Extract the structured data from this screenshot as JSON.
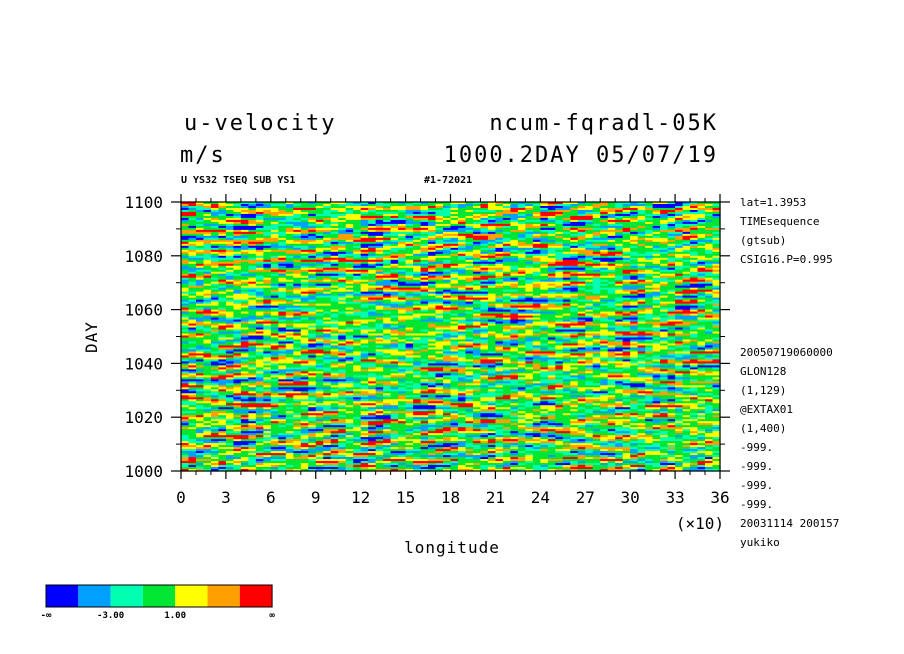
{
  "chart_data": {
    "type": "heatmap",
    "title": {
      "variable": "u-velocity",
      "units": "m/s",
      "run": "ncum-fqradl-05K",
      "info": "1000.2DAY 05/07/19"
    },
    "subtitle": {
      "left": "U YS32 TSEQ SUB YS1",
      "right": "#1-72021"
    },
    "xlabel": "longitude",
    "ylabel": "DAY",
    "x_multiplier": "(×10)",
    "xlim": [
      0,
      36
    ],
    "ylim": [
      1000,
      1100
    ],
    "x_ticks": [
      "0",
      "3",
      "6",
      "9",
      "12",
      "15",
      "18",
      "21",
      "24",
      "27",
      "30",
      "33",
      "36"
    ],
    "y_ticks": [
      "1000",
      "1020",
      "1040",
      "1060",
      "1080",
      "1100"
    ],
    "annotations_top": [
      "lat=1.3953",
      "TIMEsequence",
      "(gtsub)",
      "CSIG16.P=0.995"
    ],
    "annotations_bottom": [
      "20050719060000",
      "GLON128",
      "(1,129)",
      "@EXTAX01",
      "(1,400)",
      "-999.",
      "-999.",
      "-999.",
      "-999.",
      "20031114 200157",
      "yukiko"
    ],
    "legend": {
      "colors": [
        "#0000ff",
        "#00a0ff",
        "#00ffb0",
        "#00e632",
        "#ffff00",
        "#ffa000",
        "#ff0000"
      ],
      "labels": [
        "-∞",
        "-3.00",
        "1.00",
        "∞"
      ]
    },
    "pattern": "noisy zonal streaks, dominated by green/yellow with scattered blue, cyan and red patches"
  }
}
